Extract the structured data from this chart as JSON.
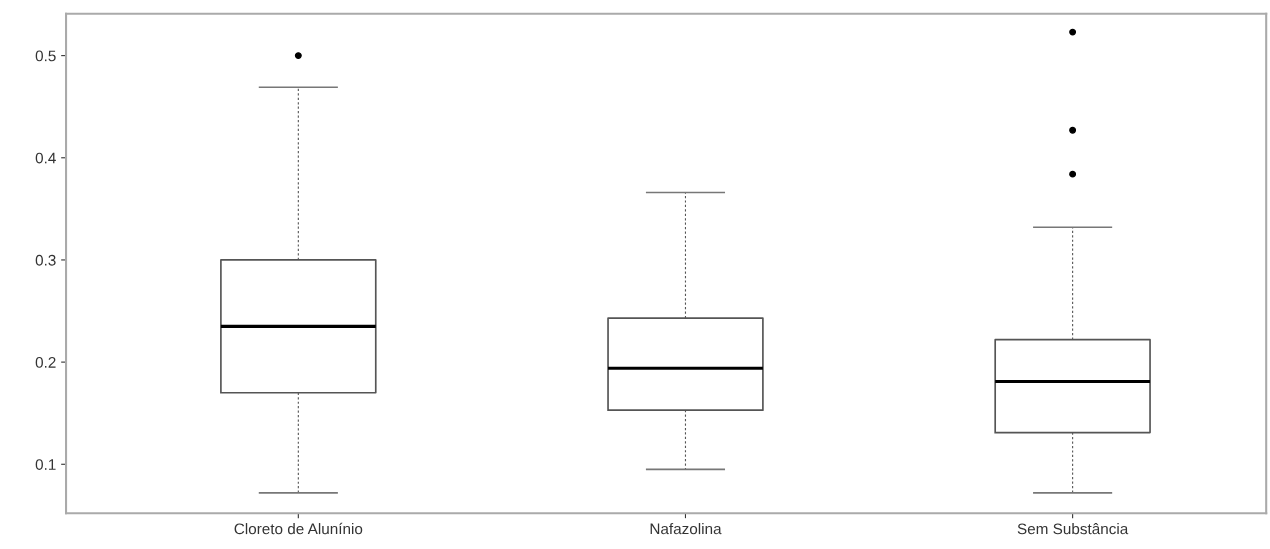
{
  "chart_data": {
    "type": "box",
    "categories": [
      "Cloreto de Alunínio",
      "Nafazolina",
      "Sem Substância"
    ],
    "boxes": [
      {
        "low": 0.072,
        "q1": 0.17,
        "median": 0.235,
        "q3": 0.3,
        "high": 0.469,
        "outliers": [
          0.5
        ]
      },
      {
        "low": 0.095,
        "q1": 0.153,
        "median": 0.194,
        "q3": 0.243,
        "high": 0.366
      },
      {
        "low": 0.072,
        "q1": 0.131,
        "median": 0.181,
        "q3": 0.222,
        "high": 0.332,
        "outliers": [
          0.523,
          0.427,
          0.384
        ]
      }
    ],
    "ylim": [
      0.052,
      0.541
    ],
    "yticks": [
      0.1,
      0.2,
      0.3,
      0.4,
      0.5
    ],
    "grid": false,
    "legend": false
  }
}
